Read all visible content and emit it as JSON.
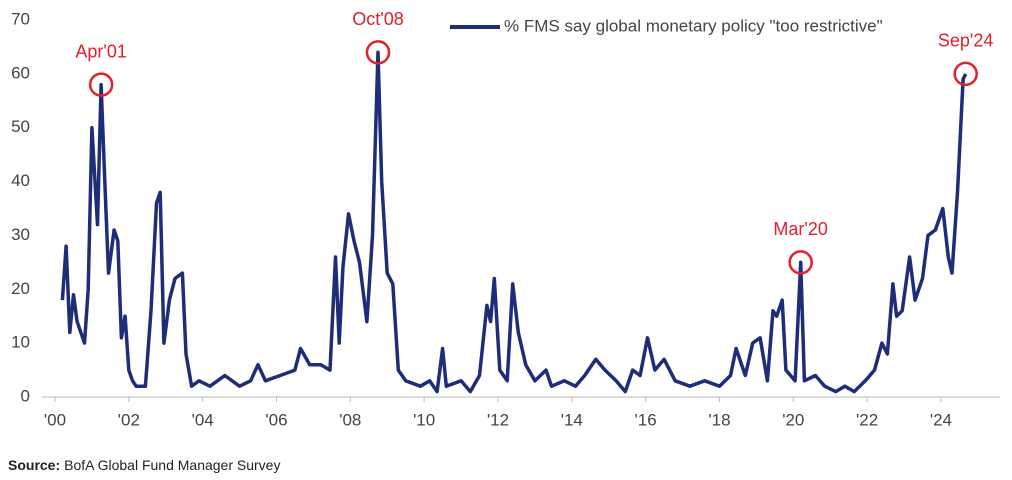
{
  "chart_data": {
    "type": "line",
    "series": [
      {
        "name": "% FMS say global monetary policy \"too restrictive\"",
        "color": "#1f2d78",
        "x": [
          2000.2,
          2000.3,
          2000.4,
          2000.5,
          2000.6,
          2000.8,
          2000.9,
          2001.0,
          2001.15,
          2001.25,
          2001.35,
          2001.45,
          2001.6,
          2001.7,
          2001.8,
          2001.9,
          2002.0,
          2002.1,
          2002.2,
          2002.45,
          2002.6,
          2002.75,
          2002.85,
          2002.95,
          2003.1,
          2003.25,
          2003.45,
          2003.55,
          2003.7,
          2003.9,
          2004.2,
          2004.6,
          2005.0,
          2005.3,
          2005.5,
          2005.7,
          2006.1,
          2006.5,
          2006.65,
          2006.9,
          2007.2,
          2007.45,
          2007.6,
          2007.7,
          2007.8,
          2007.95,
          2008.1,
          2008.25,
          2008.45,
          2008.6,
          2008.75,
          2008.85,
          2009.0,
          2009.15,
          2009.3,
          2009.5,
          2009.9,
          2010.15,
          2010.35,
          2010.5,
          2010.6,
          2011.0,
          2011.25,
          2011.5,
          2011.7,
          2011.8,
          2011.9,
          2012.05,
          2012.25,
          2012.4,
          2012.55,
          2012.75,
          2013.0,
          2013.3,
          2013.45,
          2013.8,
          2014.1,
          2014.35,
          2014.65,
          2014.9,
          2015.2,
          2015.45,
          2015.65,
          2015.85,
          2016.05,
          2016.25,
          2016.5,
          2016.8,
          2017.2,
          2017.6,
          2018.0,
          2018.3,
          2018.45,
          2018.7,
          2018.9,
          2019.1,
          2019.3,
          2019.45,
          2019.55,
          2019.7,
          2019.8,
          2020.05,
          2020.2,
          2020.3,
          2020.6,
          2020.85,
          2021.15,
          2021.4,
          2021.65,
          2021.95,
          2022.2,
          2022.4,
          2022.55,
          2022.7,
          2022.8,
          2022.95,
          2023.15,
          2023.3,
          2023.5,
          2023.65,
          2023.85,
          2024.05,
          2024.2,
          2024.3,
          2024.45,
          2024.6,
          2024.67
        ],
        "values": [
          18,
          28,
          12,
          19,
          14,
          10,
          20,
          50,
          32,
          58,
          40,
          23,
          31,
          29,
          11,
          15,
          5,
          3,
          2,
          2,
          16,
          36,
          38,
          10,
          18,
          22,
          23,
          8,
          2,
          3,
          2,
          4,
          2,
          3,
          6,
          3,
          4,
          5,
          9,
          6,
          6,
          5,
          26,
          10,
          24,
          34,
          29,
          25,
          14,
          30,
          64,
          40,
          23,
          21,
          5,
          3,
          2,
          3,
          1,
          9,
          2,
          3,
          1,
          4,
          17,
          14,
          22,
          5,
          3,
          21,
          12,
          6,
          3,
          5,
          2,
          3,
          2,
          4,
          7,
          5,
          3,
          1,
          5,
          4,
          11,
          5,
          7,
          3,
          2,
          3,
          2,
          4,
          9,
          4,
          10,
          11,
          3,
          16,
          15,
          18,
          5,
          3,
          25,
          3,
          4,
          2,
          1,
          2,
          1,
          3,
          5,
          10,
          8,
          21,
          15,
          16,
          26,
          18,
          22,
          30,
          31,
          35,
          26,
          23,
          38,
          59,
          60
        ]
      }
    ],
    "xlim": [
      2000,
      2025.6
    ],
    "xticks": [
      {
        "value": 2000,
        "label": "'00"
      },
      {
        "value": 2002,
        "label": "'02"
      },
      {
        "value": 2004,
        "label": "'04"
      },
      {
        "value": 2006,
        "label": "'06"
      },
      {
        "value": 2008,
        "label": "'08"
      },
      {
        "value": 2010,
        "label": "'10"
      },
      {
        "value": 2012,
        "label": "'12"
      },
      {
        "value": 2014,
        "label": "'14"
      },
      {
        "value": 2016,
        "label": "'16"
      },
      {
        "value": 2018,
        "label": "'18"
      },
      {
        "value": 2020,
        "label": "'20"
      },
      {
        "value": 2022,
        "label": "'22"
      },
      {
        "value": 2024,
        "label": "'24"
      }
    ],
    "ylim": [
      0,
      70
    ],
    "yticks": [
      0,
      10,
      20,
      30,
      40,
      50,
      60,
      70
    ],
    "grid": false,
    "legend": "top",
    "annotations": [
      {
        "text": "Apr'01",
        "x": 2001.25,
        "y": 58,
        "color": "#e3202b"
      },
      {
        "text": "Oct'08",
        "x": 2008.75,
        "y": 64,
        "color": "#e3202b"
      },
      {
        "text": "Mar'20",
        "x": 2020.2,
        "y": 25,
        "color": "#e3202b"
      },
      {
        "text": "Sep'24",
        "x": 2024.67,
        "y": 60,
        "color": "#e3202b"
      }
    ],
    "source_label": "Source:",
    "source": "BofA Global Fund Manager Survey"
  }
}
